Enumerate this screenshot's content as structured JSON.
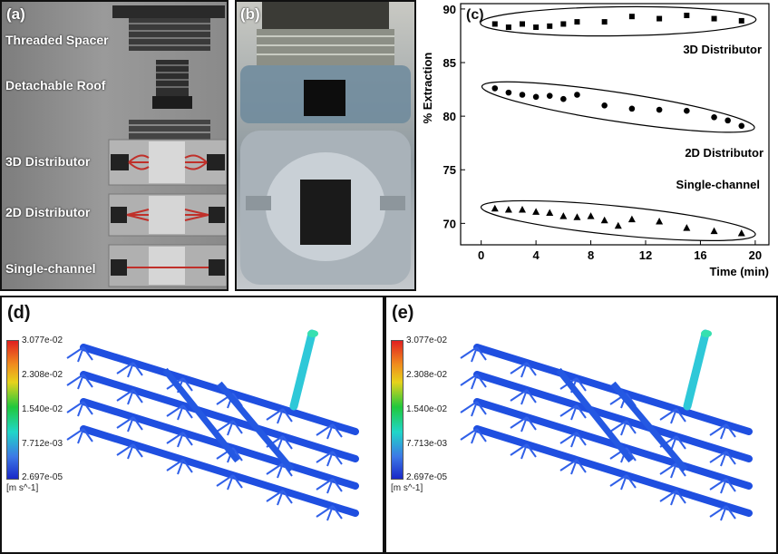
{
  "panel_a": {
    "label": "(a)",
    "parts": [
      "Threaded Spacer",
      "Detachable Roof",
      "3D Distributor",
      "2D Distributor",
      "Single-channel"
    ]
  },
  "panel_b": {
    "label": "(b)"
  },
  "panel_c": {
    "label": "(c)"
  },
  "panel_d": {
    "label": "(d)",
    "colorbar_ticks": [
      "3.077e-02",
      "2.308e-02",
      "1.540e-02",
      "7.712e-03",
      "2.697e-05"
    ],
    "unit": "[m s^-1]"
  },
  "panel_e": {
    "label": "(e)",
    "colorbar_ticks": [
      "3.077e-02",
      "2.308e-02",
      "1.540e-02",
      "7.713e-03",
      "2.697e-05"
    ],
    "unit": "[m s^-1]"
  },
  "chart_data": {
    "type": "scatter",
    "xlabel": "Time (min)",
    "ylabel": "% Extraction",
    "xlim": [
      -1.5,
      21
    ],
    "ylim": [
      68,
      90.5
    ],
    "xticks": [
      0,
      4,
      8,
      12,
      16,
      20
    ],
    "yticks": [
      70,
      75,
      80,
      85,
      90
    ],
    "grid": false,
    "series": [
      {
        "name": "3D Distributor",
        "marker": "square",
        "x": [
          1,
          2,
          3,
          4,
          5,
          6,
          7,
          9,
          11,
          13,
          15,
          17,
          19
        ],
        "y": [
          88.6,
          88.3,
          88.6,
          88.3,
          88.4,
          88.6,
          88.8,
          88.8,
          89.3,
          89.1,
          89.4,
          89.1,
          88.9
        ]
      },
      {
        "name": "2D Distributor",
        "marker": "circle",
        "x": [
          1,
          2,
          3,
          4,
          5,
          6,
          7,
          9,
          11,
          13,
          15,
          17,
          18,
          19
        ],
        "y": [
          82.6,
          82.2,
          82.0,
          81.8,
          81.9,
          81.6,
          82.0,
          81.0,
          80.7,
          80.6,
          80.5,
          79.9,
          79.6,
          79.1
        ]
      },
      {
        "name": "Single-channel",
        "marker": "triangle",
        "x": [
          1,
          2,
          3,
          4,
          5,
          6,
          7,
          8,
          9,
          10,
          11,
          13,
          15,
          17,
          19
        ],
        "y": [
          71.4,
          71.3,
          71.3,
          71.1,
          71.0,
          70.7,
          70.6,
          70.7,
          70.3,
          69.8,
          70.4,
          70.2,
          69.6,
          69.3,
          69.1
        ]
      }
    ]
  }
}
